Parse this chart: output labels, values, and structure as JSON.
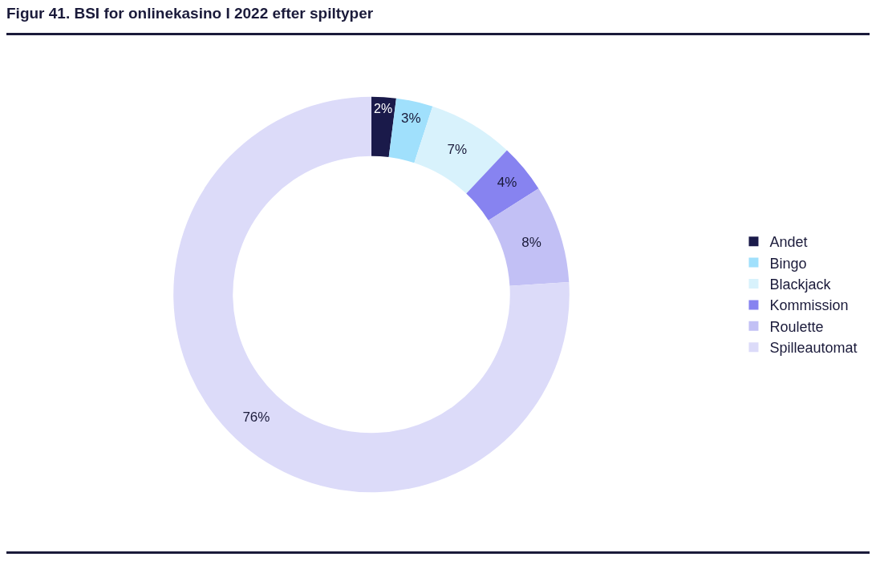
{
  "chart_data": {
    "type": "donut",
    "title": "Figur 41. BSI for onlinekasino I 2022 efter spiltyper",
    "categories": [
      "Andet",
      "Bingo",
      "Blackjack",
      "Kommission",
      "Roulette",
      "Spilleautomat"
    ],
    "values": [
      2,
      3,
      7,
      4,
      8,
      76
    ],
    "value_labels": [
      "2%",
      "3%",
      "7%",
      "4%",
      "8%",
      "76%"
    ],
    "colors": [
      "#1a1a4a",
      "#a0e0fc",
      "#d8f2fc",
      "#8783f0",
      "#c2c0f5",
      "#dcdbf9"
    ],
    "legend": "right"
  }
}
